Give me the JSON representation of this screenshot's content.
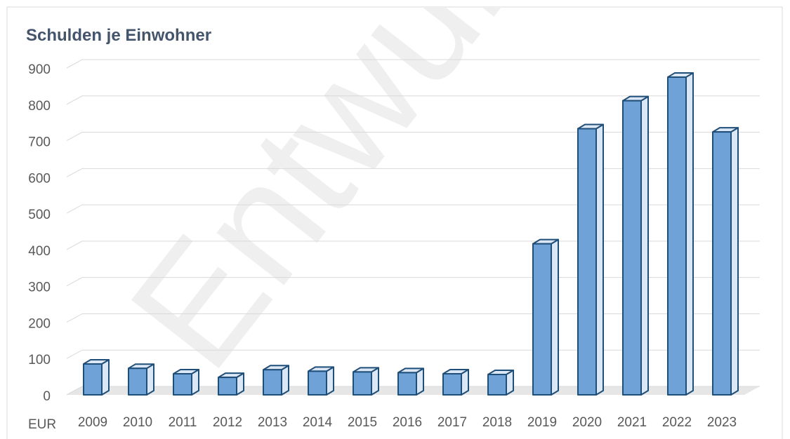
{
  "chart_data": {
    "type": "bar",
    "title": "Schulden je Einwohner",
    "y_label": "EUR",
    "watermark": "Entwurf",
    "categories": [
      "2009",
      "2010",
      "2011",
      "2012",
      "2013",
      "2014",
      "2015",
      "2016",
      "2017",
      "2018",
      "2019",
      "2020",
      "2021",
      "2022",
      "2023"
    ],
    "values": [
      85,
      73,
      58,
      48,
      69,
      65,
      63,
      61,
      58,
      56,
      416,
      733,
      810,
      875,
      724
    ],
    "color": "#6fa3d8",
    "ylim": [
      0,
      900
    ],
    "yticks": [
      0,
      100,
      200,
      300,
      400,
      500,
      600,
      700,
      800,
      900
    ],
    "grid": true
  }
}
